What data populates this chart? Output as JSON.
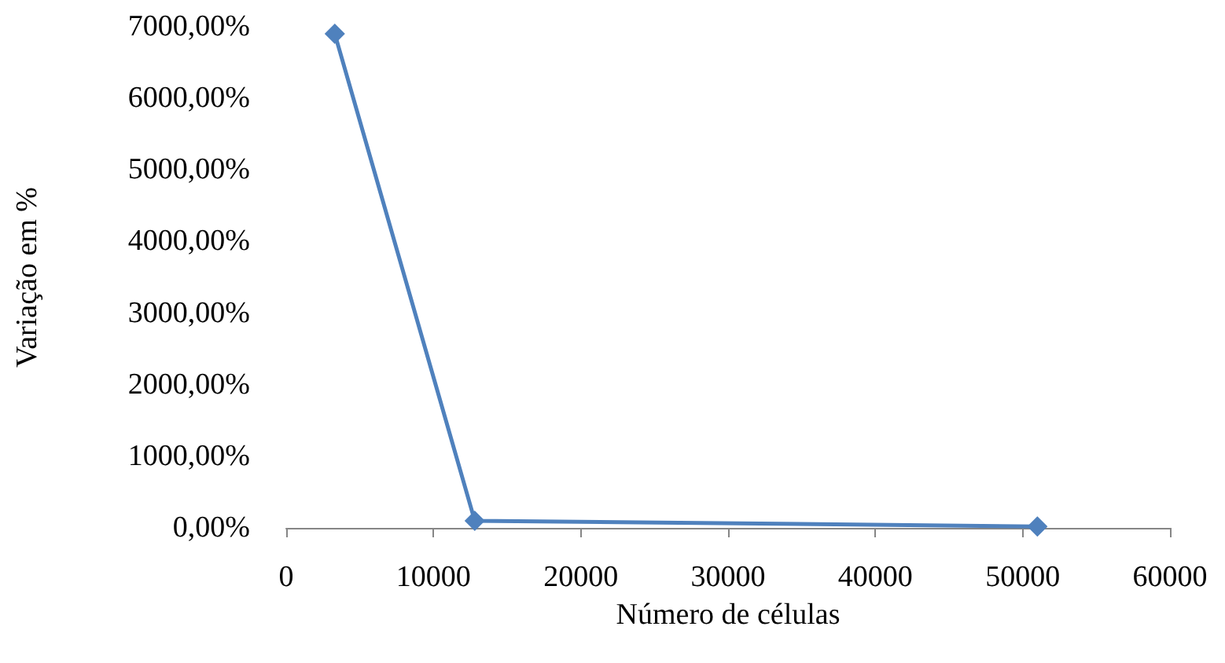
{
  "chart_data": {
    "type": "line",
    "xlabel": "Número de células",
    "ylabel": "Variação em %",
    "x": [
      3300,
      12800,
      51000
    ],
    "series": [
      {
        "color": "#4f81bd",
        "values": [
          6900,
          100,
          20
        ]
      }
    ],
    "xlim": [
      0,
      60000
    ],
    "xticks": [
      0,
      10000,
      20000,
      30000,
      40000,
      50000,
      60000
    ],
    "ylim": [
      0,
      7000
    ],
    "yticks": [
      {
        "value": 0,
        "label": "0,00%"
      },
      {
        "value": 1000,
        "label": "1000,00%"
      },
      {
        "value": 2000,
        "label": "2000,00%"
      },
      {
        "value": 3000,
        "label": "3000,00%"
      },
      {
        "value": 4000,
        "label": "4000,00%"
      },
      {
        "value": 5000,
        "label": "5000,00%"
      },
      {
        "value": 6000,
        "label": "6000,00%"
      },
      {
        "value": 7000,
        "label": "7000,00%"
      }
    ],
    "marker": "diamond",
    "line_style": "solid",
    "grid": false
  }
}
